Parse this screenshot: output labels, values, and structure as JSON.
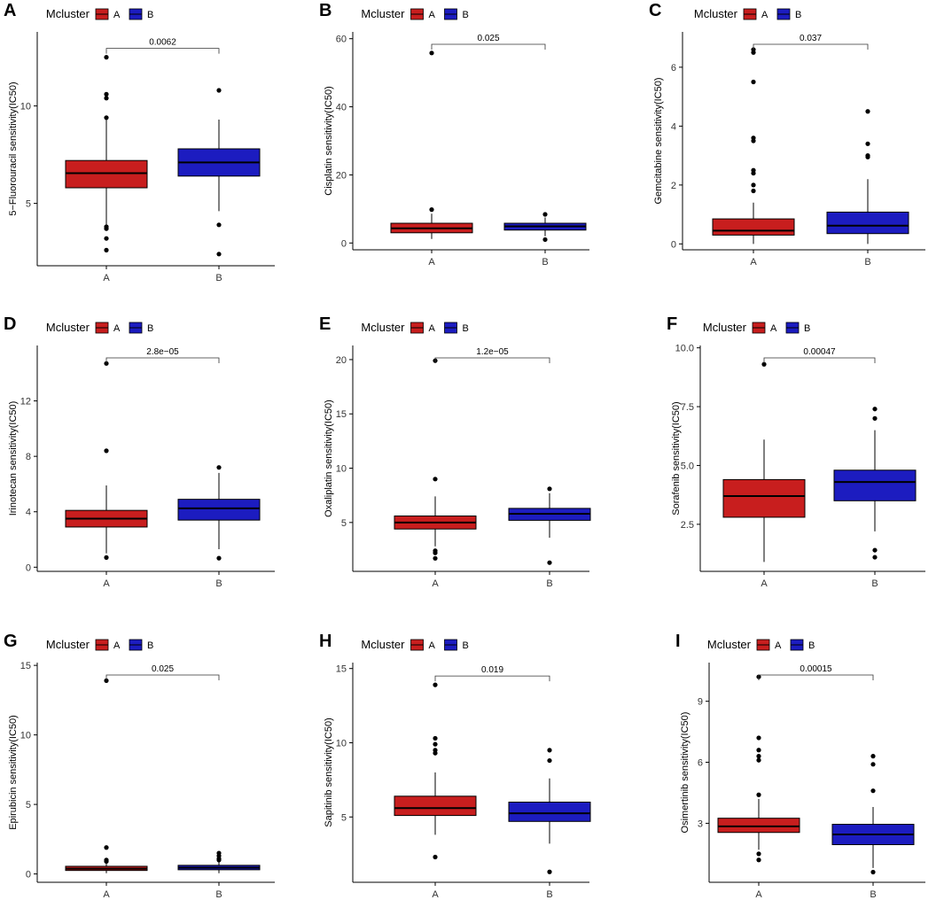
{
  "figure": {
    "legend_title": "Mcluster",
    "colors": {
      "A": "#c81e1e",
      "B": "#1c1cc0"
    }
  },
  "chart_data": [
    {
      "panel": "A",
      "type": "boxplot",
      "ylabel": "5−Fluorouracil sensitivity(IC50)",
      "categories": [
        "A",
        "B"
      ],
      "ylim": [
        1.8,
        13.8
      ],
      "yticks": [
        5,
        10
      ],
      "legend": {
        "title": "Mcluster",
        "entries": [
          "A",
          "B"
        ]
      },
      "pvalue": "0.0062",
      "boxes": [
        {
          "group": "A",
          "whisker_low": 3.9,
          "q1": 5.8,
          "median": 6.55,
          "q3": 7.2,
          "whisker_high": 9.3,
          "outliers": [
            12.5,
            10.6,
            10.4,
            9.4,
            3.8,
            3.7,
            3.2,
            2.6
          ]
        },
        {
          "group": "B",
          "whisker_low": 4.6,
          "q1": 6.4,
          "median": 7.1,
          "q3": 7.8,
          "whisker_high": 9.3,
          "outliers": [
            10.8,
            3.9,
            2.4
          ]
        }
      ]
    },
    {
      "panel": "B",
      "type": "boxplot",
      "ylabel": "Cisplatin sensitivity(IC50)",
      "categories": [
        "A",
        "B"
      ],
      "ylim": [
        -2,
        62
      ],
      "yticks": [
        0,
        20,
        40,
        60
      ],
      "legend": {
        "title": "Mcluster",
        "entries": [
          "A",
          "B"
        ]
      },
      "pvalue": "0.025",
      "boxes": [
        {
          "group": "A",
          "whisker_low": 1.2,
          "q1": 3.0,
          "median": 4.3,
          "q3": 5.8,
          "whisker_high": 8.6,
          "outliers": [
            55.8,
            9.8
          ]
        },
        {
          "group": "B",
          "whisker_low": 2.0,
          "q1": 3.8,
          "median": 4.9,
          "q3": 5.8,
          "whisker_high": 7.5,
          "outliers": [
            8.4,
            1.0
          ]
        }
      ]
    },
    {
      "panel": "C",
      "type": "boxplot",
      "ylabel": "Gemcitabine sensitivity(IC50)",
      "categories": [
        "A",
        "B"
      ],
      "ylim": [
        -0.2,
        7.2
      ],
      "yticks": [
        0,
        2,
        4,
        6
      ],
      "legend": {
        "title": "Mcluster",
        "entries": [
          "A",
          "B"
        ]
      },
      "pvalue": "0.037",
      "boxes": [
        {
          "group": "A",
          "whisker_low": 0.0,
          "q1": 0.3,
          "median": 0.45,
          "q3": 0.85,
          "whisker_high": 1.4,
          "outliers": [
            6.6,
            6.5,
            5.5,
            3.6,
            3.5,
            2.5,
            2.4,
            2.0,
            1.8
          ]
        },
        {
          "group": "B",
          "whisker_low": 0.0,
          "q1": 0.35,
          "median": 0.62,
          "q3": 1.08,
          "whisker_high": 2.2,
          "outliers": [
            4.5,
            3.4,
            3.0,
            2.95
          ]
        }
      ]
    },
    {
      "panel": "D",
      "type": "boxplot",
      "ylabel": "Irinotecan sensitivity(IC50)",
      "categories": [
        "A",
        "B"
      ],
      "ylim": [
        -0.3,
        16
      ],
      "yticks": [
        0,
        4,
        8,
        12
      ],
      "legend": {
        "title": "Mcluster",
        "entries": [
          "A",
          "B"
        ]
      },
      "pvalue": "2.8e−05",
      "boxes": [
        {
          "group": "A",
          "whisker_low": 1.0,
          "q1": 2.9,
          "median": 3.5,
          "q3": 4.1,
          "whisker_high": 5.9,
          "outliers": [
            14.7,
            8.4,
            0.7
          ]
        },
        {
          "group": "B",
          "whisker_low": 1.3,
          "q1": 3.4,
          "median": 4.25,
          "q3": 4.9,
          "whisker_high": 6.8,
          "outliers": [
            7.2,
            0.65
          ]
        }
      ]
    },
    {
      "panel": "E",
      "type": "boxplot",
      "ylabel": "Oxaliplatin sensitivity(IC50)",
      "categories": [
        "A",
        "B"
      ],
      "ylim": [
        0.5,
        21.3
      ],
      "yticks": [
        5,
        10,
        15,
        20
      ],
      "legend": {
        "title": "Mcluster",
        "entries": [
          "A",
          "B"
        ]
      },
      "pvalue": "1.2e−05",
      "boxes": [
        {
          "group": "A",
          "whisker_low": 2.8,
          "q1": 4.4,
          "median": 5.0,
          "q3": 5.6,
          "whisker_high": 7.4,
          "outliers": [
            19.9,
            9.0,
            2.4,
            2.2,
            1.7
          ]
        },
        {
          "group": "B",
          "whisker_low": 3.6,
          "q1": 5.2,
          "median": 5.8,
          "q3": 6.3,
          "whisker_high": 7.7,
          "outliers": [
            8.1,
            1.3
          ]
        }
      ]
    },
    {
      "panel": "F",
      "type": "boxplot",
      "ylabel": "Sorafenib sensitivity(IC50)",
      "categories": [
        "A",
        "B"
      ],
      "ylim": [
        0.5,
        10.1
      ],
      "yticks": [
        2.5,
        5.0,
        7.5,
        10.0
      ],
      "legend": {
        "title": "Mcluster",
        "entries": [
          "A",
          "B"
        ]
      },
      "pvalue": "0.00047",
      "boxes": [
        {
          "group": "A",
          "whisker_low": 0.9,
          "q1": 2.8,
          "median": 3.7,
          "q3": 4.4,
          "whisker_high": 6.1,
          "outliers": [
            9.3
          ]
        },
        {
          "group": "B",
          "whisker_low": 2.2,
          "q1": 3.5,
          "median": 4.3,
          "q3": 4.8,
          "whisker_high": 6.5,
          "outliers": [
            7.4,
            7.0,
            1.4,
            1.1
          ]
        }
      ]
    },
    {
      "panel": "G",
      "type": "boxplot",
      "ylabel": "Epirubicin sensitivity(IC50)",
      "categories": [
        "A",
        "B"
      ],
      "ylim": [
        -0.6,
        15.2
      ],
      "yticks": [
        0,
        5,
        10,
        15
      ],
      "legend": {
        "title": "Mcluster",
        "entries": [
          "A",
          "B"
        ]
      },
      "pvalue": "0.025",
      "boxes": [
        {
          "group": "A",
          "whisker_low": 0.05,
          "q1": 0.25,
          "median": 0.38,
          "q3": 0.55,
          "whisker_high": 0.8,
          "outliers": [
            13.9,
            1.9,
            1.0,
            0.9
          ]
        },
        {
          "group": "B",
          "whisker_low": 0.05,
          "q1": 0.3,
          "median": 0.45,
          "q3": 0.62,
          "whisker_high": 0.9,
          "outliers": [
            1.5,
            1.3,
            1.1,
            1.0
          ]
        }
      ]
    },
    {
      "panel": "H",
      "type": "boxplot",
      "ylabel": "Sapitinib sensitivity(IC50)",
      "categories": [
        "A",
        "B"
      ],
      "ylim": [
        0.6,
        15.4
      ],
      "yticks": [
        5,
        10,
        15
      ],
      "legend": {
        "title": "Mcluster",
        "entries": [
          "A",
          "B"
        ]
      },
      "pvalue": "0.019",
      "boxes": [
        {
          "group": "A",
          "whisker_low": 3.8,
          "q1": 5.1,
          "median": 5.6,
          "q3": 6.4,
          "whisker_high": 8.0,
          "outliers": [
            13.9,
            10.3,
            9.9,
            9.5,
            9.3,
            2.3
          ]
        },
        {
          "group": "B",
          "whisker_low": 3.2,
          "q1": 4.7,
          "median": 5.25,
          "q3": 6.0,
          "whisker_high": 7.6,
          "outliers": [
            9.5,
            8.8,
            1.3
          ]
        }
      ]
    },
    {
      "panel": "I",
      "type": "boxplot",
      "ylabel": "Osimertinib sensitivity(IC50)",
      "categories": [
        "A",
        "B"
      ],
      "ylim": [
        0.1,
        10.9
      ],
      "yticks": [
        3,
        6,
        9
      ],
      "legend": {
        "title": "Mcluster",
        "entries": [
          "A",
          "B"
        ]
      },
      "pvalue": "0.00015",
      "boxes": [
        {
          "group": "A",
          "whisker_low": 1.7,
          "q1": 2.55,
          "median": 2.85,
          "q3": 3.25,
          "whisker_high": 4.2,
          "outliers": [
            10.2,
            7.2,
            6.6,
            6.3,
            6.1,
            4.4,
            1.5,
            1.2
          ]
        },
        {
          "group": "B",
          "whisker_low": 0.8,
          "q1": 1.95,
          "median": 2.45,
          "q3": 2.95,
          "whisker_high": 3.8,
          "outliers": [
            6.3,
            5.9,
            4.6,
            0.6
          ]
        }
      ]
    }
  ]
}
